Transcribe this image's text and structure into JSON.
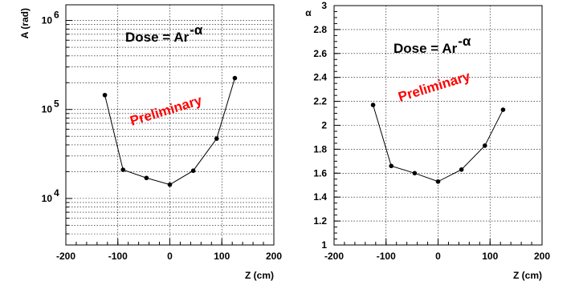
{
  "chart_data": [
    {
      "type": "line",
      "title": "",
      "xlabel": "Z (cm)",
      "ylabel": "A (rad)",
      "xlim": [
        -200,
        200
      ],
      "ylim": [
        3000,
        1500000
      ],
      "yscale": "log",
      "grid": true,
      "xticks": [
        "-200",
        "-100",
        "0",
        "100",
        "200"
      ],
      "yticks": [
        {
          "base": "10",
          "exp": "4",
          "value": 10000
        },
        {
          "base": "10",
          "exp": "5",
          "value": 100000
        },
        {
          "base": "10",
          "exp": "6",
          "value": 1000000
        }
      ],
      "formula": {
        "text": "Dose = Ar",
        "sup": "-α"
      },
      "watermark": "Preliminary",
      "watermark_color": "#ff0000",
      "series": [
        {
          "x": [
            -125,
            -90,
            -45,
            0,
            45,
            90,
            125
          ],
          "y": [
            145000,
            21000,
            17000,
            14300,
            20500,
            47000,
            225000
          ]
        }
      ]
    },
    {
      "type": "line",
      "title": "",
      "xlabel": "Z (cm)",
      "ylabel": "α",
      "xlim": [
        -200,
        200
      ],
      "ylim": [
        1,
        3
      ],
      "yscale": "linear",
      "grid": true,
      "xticks": [
        "-200",
        "-100",
        "0",
        "100",
        "200"
      ],
      "yticks": [
        "1",
        "1.2",
        "1.4",
        "1.6",
        "1.8",
        "2",
        "2.2",
        "2.4",
        "2.6",
        "2.8",
        "3"
      ],
      "formula": {
        "text": "Dose = Ar",
        "sup": "-α"
      },
      "watermark": "Preliminary",
      "watermark_color": "#ff0000",
      "series": [
        {
          "x": [
            -125,
            -90,
            -45,
            0,
            45,
            90,
            125
          ],
          "y": [
            2.17,
            1.66,
            1.6,
            1.53,
            1.63,
            1.83,
            2.13
          ]
        }
      ]
    }
  ]
}
